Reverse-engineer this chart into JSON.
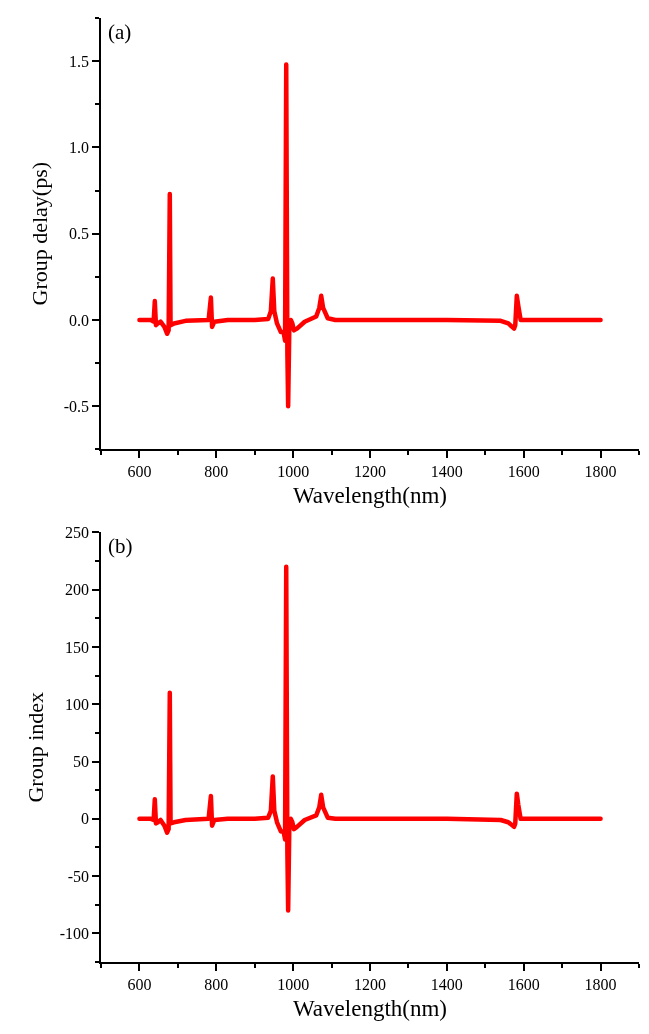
{
  "chart_data": [
    {
      "type": "line",
      "annotations": [
        "(a)"
      ],
      "xlabel": "Wavelength(nm)",
      "ylabel": "Group delay(ps)",
      "x": [
        600,
        630,
        637,
        640,
        643,
        648,
        655,
        665,
        672,
        676,
        679,
        681,
        690,
        720,
        780,
        786,
        789,
        795,
        830,
        900,
        935,
        942,
        947,
        951,
        958,
        968,
        975,
        979,
        982,
        985,
        987,
        990,
        994,
        998,
        1002,
        1010,
        1030,
        1060,
        1068,
        1073,
        1078,
        1090,
        1110,
        1400,
        1540,
        1560,
        1575,
        1578,
        1582,
        1586,
        1592,
        1800
      ],
      "series": [
        {
          "color": "#ff0000",
          "values": [
            0,
            0,
            -0.01,
            0.11,
            -0.03,
            -0.02,
            -0.01,
            -0.04,
            -0.08,
            -0.06,
            0.73,
            -0.03,
            -0.02,
            -0.005,
            0,
            0.13,
            -0.04,
            -0.01,
            0,
            0,
            0.005,
            0.05,
            0.24,
            0.05,
            -0.02,
            -0.07,
            -0.07,
            -0.12,
            1.48,
            -0.2,
            -0.5,
            -0.05,
            0,
            -0.02,
            -0.06,
            -0.05,
            -0.01,
            0.02,
            0.07,
            0.14,
            0.07,
            0.01,
            0,
            0,
            -0.005,
            -0.02,
            -0.05,
            -0.03,
            0.14,
            0.08,
            0,
            0
          ]
        }
      ],
      "xlim": [
        500,
        1900
      ],
      "ylim": [
        -0.75,
        1.75
      ],
      "xticks": [
        {
          "value": 500,
          "label": null
        },
        600,
        {
          "value": 700,
          "label": null
        },
        800,
        {
          "value": 900,
          "label": null
        },
        1000,
        {
          "value": 1100,
          "label": null
        },
        1200,
        {
          "value": 1300,
          "label": null
        },
        1400,
        {
          "value": 1500,
          "label": null
        },
        1600,
        {
          "value": 1700,
          "label": null
        },
        1800,
        {
          "value": 1900,
          "label": null
        }
      ],
      "yticks": [
        {
          "value": -0.75,
          "label": null
        },
        {
          "value": -0.5,
          "label": "-0.5"
        },
        {
          "value": -0.25,
          "label": null
        },
        {
          "value": 0,
          "label": "0.0"
        },
        {
          "value": 0.25,
          "label": null
        },
        0.5,
        {
          "value": 0.75,
          "label": null
        },
        {
          "value": 1,
          "label": "1.0"
        },
        {
          "value": 1.25,
          "label": null
        },
        1.5,
        {
          "value": 1.75,
          "label": null
        }
      ]
    },
    {
      "type": "line",
      "annotations": [
        "(b)"
      ],
      "xlabel": "Wavelength(nm)",
      "ylabel": "Group index",
      "x": [
        600,
        630,
        637,
        640,
        643,
        648,
        655,
        665,
        672,
        676,
        679,
        681,
        690,
        720,
        780,
        786,
        789,
        795,
        830,
        900,
        935,
        942,
        947,
        951,
        958,
        968,
        975,
        979,
        982,
        985,
        987,
        990,
        994,
        998,
        1002,
        1010,
        1030,
        1060,
        1068,
        1073,
        1078,
        1090,
        1110,
        1400,
        1540,
        1560,
        1575,
        1578,
        1582,
        1586,
        1592,
        1800
      ],
      "series": [
        {
          "color": "#ff0000",
          "values": [
            0,
            0,
            -1,
            17,
            -4,
            -3,
            -1,
            -6,
            -12,
            -9,
            110,
            -4,
            -3,
            -1,
            0,
            20,
            -6,
            -1,
            0,
            0,
            1,
            7,
            37,
            7,
            -3,
            -11,
            -11,
            -18,
            220,
            -30,
            -80,
            -8,
            0,
            -3,
            -9,
            -7,
            -1,
            3,
            10,
            21,
            10,
            1,
            0,
            0,
            -1,
            -3,
            -7,
            -4,
            22,
            12,
            0,
            0
          ]
        }
      ],
      "xlim": [
        500,
        1900
      ],
      "ylim": [
        -125,
        250
      ],
      "xticks": [
        {
          "value": 500,
          "label": null
        },
        600,
        {
          "value": 700,
          "label": null
        },
        800,
        {
          "value": 900,
          "label": null
        },
        1000,
        {
          "value": 1100,
          "label": null
        },
        1200,
        {
          "value": 1300,
          "label": null
        },
        1400,
        {
          "value": 1500,
          "label": null
        },
        1600,
        {
          "value": 1700,
          "label": null
        },
        1800,
        {
          "value": 1900,
          "label": null
        }
      ],
      "yticks": [
        {
          "value": -125,
          "label": null
        },
        -100,
        {
          "value": -75,
          "label": null
        },
        -50,
        {
          "value": -25,
          "label": null
        },
        0,
        {
          "value": 25,
          "label": null
        },
        50,
        {
          "value": 75,
          "label": null
        },
        100,
        {
          "value": 125,
          "label": null
        },
        150,
        {
          "value": 175,
          "label": null
        },
        200,
        {
          "value": 225,
          "label": null
        },
        250
      ]
    }
  ]
}
